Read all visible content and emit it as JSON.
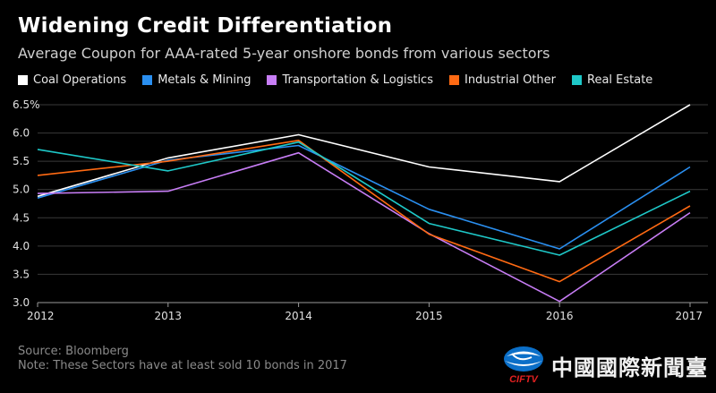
{
  "header": {
    "title": "Widening Credit Differentiation",
    "subtitle": "Average Coupon for AAA-rated 5-year onshore bonds from various sectors"
  },
  "footer": {
    "source": "Source: Bloomberg",
    "note": "Note: These Sectors have at least sold 10 bonds in 2017"
  },
  "logo": {
    "wordmark": "CIFTV",
    "brand_text": "中國國際新聞臺"
  },
  "colors": {
    "background": "#000000",
    "grid": "#3a3a3a",
    "axis_text": "#e0e0e0"
  },
  "chart_data": {
    "type": "line",
    "title": "Widening Credit Differentiation",
    "subtitle": "Average Coupon for AAA-rated 5-year onshore bonds from various sectors",
    "x": [
      "2012",
      "2013",
      "2014",
      "2015",
      "2016",
      "2017"
    ],
    "ylim": [
      3.0,
      6.5
    ],
    "yticks": [
      3.0,
      3.5,
      4.0,
      4.5,
      5.0,
      5.5,
      6.0,
      6.5
    ],
    "ytick_labels": [
      "3.0",
      "3.5",
      "4.0",
      "4.5",
      "5.0",
      "5.5",
      "6.0",
      "6.5%"
    ],
    "grid": true,
    "legend_position": "top",
    "series": [
      {
        "name": "Coal Operations",
        "color": "#ffffff",
        "values": [
          4.88,
          5.56,
          5.97,
          5.4,
          5.14,
          6.5
        ]
      },
      {
        "name": "Metals & Mining",
        "color": "#2a8ff0",
        "values": [
          4.85,
          5.52,
          5.78,
          4.65,
          3.95,
          5.4
        ]
      },
      {
        "name": "Transportation & Logistics",
        "color": "#c77df5",
        "values": [
          4.93,
          4.97,
          5.65,
          4.22,
          3.02,
          4.59
        ]
      },
      {
        "name": "Industrial Other",
        "color": "#ff6a13",
        "values": [
          5.25,
          5.5,
          5.87,
          4.21,
          3.37,
          4.71
        ]
      },
      {
        "name": "Real Estate",
        "color": "#1ec8c8",
        "values": [
          5.71,
          5.33,
          5.84,
          4.4,
          3.84,
          4.97
        ]
      }
    ]
  }
}
